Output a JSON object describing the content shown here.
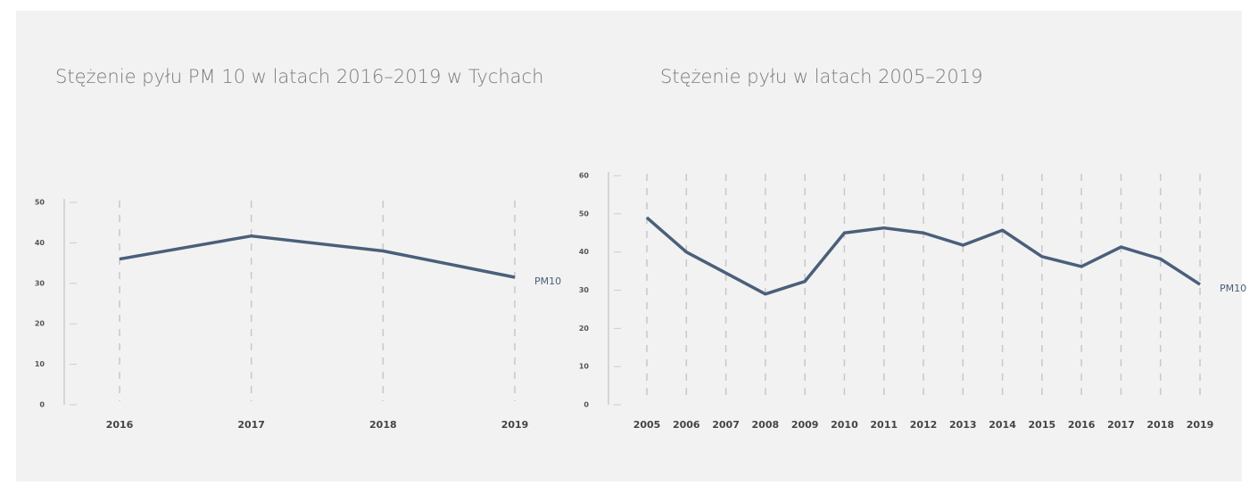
{
  "chart_data": [
    {
      "type": "line",
      "title": "Stężenie pyłu PM 10 w latach 2016–2019 w Tychach",
      "categories": [
        "2016",
        "2017",
        "2018",
        "2019"
      ],
      "series": [
        {
          "name": "PM10",
          "color": "#4a5f7a",
          "values": [
            36,
            41.7,
            38,
            31.5
          ]
        }
      ],
      "ylim": [
        0,
        50
      ],
      "yticks": [
        0,
        10,
        20,
        30,
        40,
        50
      ],
      "grid": true
    },
    {
      "type": "line",
      "title": "Stężenie pyłu w latach 2005–2019",
      "categories": [
        "2005",
        "2006",
        "2007",
        "2008",
        "2009",
        "2010",
        "2011",
        "2012",
        "2013",
        "2014",
        "2015",
        "2016",
        "2017",
        "2018",
        "2019"
      ],
      "series": [
        {
          "name": "PM10",
          "color": "#4a5f7a",
          "values": [
            49,
            40,
            34.5,
            29,
            32.3,
            45,
            46.3,
            45,
            41.8,
            45.7,
            38.8,
            36.2,
            41.3,
            38.2,
            31.5
          ]
        }
      ],
      "ylim": [
        0,
        60
      ],
      "yticks": [
        0,
        10,
        20,
        30,
        40,
        50,
        60
      ],
      "grid": true
    }
  ]
}
